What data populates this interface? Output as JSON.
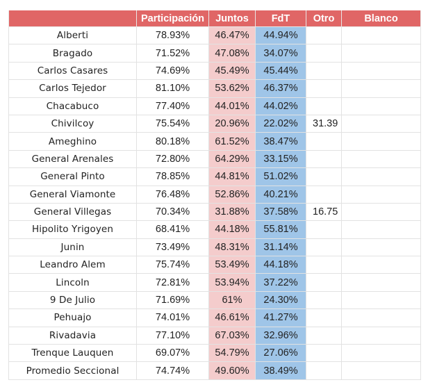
{
  "headers": {
    "name": "",
    "participacion": "Participación",
    "juntos": "Juntos",
    "fdt": "FdT",
    "otro": "Otro",
    "blanco": "Blanco"
  },
  "colors": {
    "header": "#e06666",
    "juntos": "#f4cccc",
    "fdt": "#9fc5e8"
  },
  "rows": [
    {
      "name": "Alberti",
      "participacion": "78.93%",
      "juntos": "46.47%",
      "fdt": "44.94%",
      "otro": "",
      "blanco": ""
    },
    {
      "name": "Bragado",
      "participacion": "71.52%",
      "juntos": "47.08%",
      "fdt": "34.07%",
      "otro": "",
      "blanco": ""
    },
    {
      "name": "Carlos Casares",
      "participacion": "74.69%",
      "juntos": "45.49%",
      "fdt": "45.44%",
      "otro": "",
      "blanco": ""
    },
    {
      "name": "Carlos Tejedor",
      "participacion": "81.10%",
      "juntos": "53.62%",
      "fdt": "46.37%",
      "otro": "",
      "blanco": ""
    },
    {
      "name": "Chacabuco",
      "participacion": "77.40%",
      "juntos": "44.01%",
      "fdt": "44.02%",
      "otro": "",
      "blanco": ""
    },
    {
      "name": "Chivilcoy",
      "participacion": "75.54%",
      "juntos": "20.96%",
      "fdt": "22.02%",
      "otro": "31.39",
      "blanco": ""
    },
    {
      "name": "Ameghino",
      "participacion": "80.18%",
      "juntos": "61.52%",
      "fdt": "38.47%",
      "otro": "",
      "blanco": ""
    },
    {
      "name": "General Arenales",
      "participacion": "72.80%",
      "juntos": "64.29%",
      "fdt": "33.15%",
      "otro": "",
      "blanco": ""
    },
    {
      "name": "General Pinto",
      "participacion": "78.85%",
      "juntos": "44.81%",
      "fdt": "51.02%",
      "otro": "",
      "blanco": ""
    },
    {
      "name": "General Viamonte",
      "participacion": "76.48%",
      "juntos": "52.86%",
      "fdt": "40.21%",
      "otro": "",
      "blanco": ""
    },
    {
      "name": "General Villegas",
      "participacion": "70.34%",
      "juntos": "31.88%",
      "fdt": "37.58%",
      "otro": "16.75",
      "blanco": ""
    },
    {
      "name": "Hipolito Yrigoyen",
      "participacion": "68.41%",
      "juntos": "44.18%",
      "fdt": "55.81%",
      "otro": "",
      "blanco": ""
    },
    {
      "name": "Junin",
      "participacion": "73.49%",
      "juntos": "48.31%",
      "fdt": "31.14%",
      "otro": "",
      "blanco": ""
    },
    {
      "name": "Leandro Alem",
      "participacion": "75.74%",
      "juntos": "53.49%",
      "fdt": "44.18%",
      "otro": "",
      "blanco": ""
    },
    {
      "name": "Lincoln",
      "participacion": "72.81%",
      "juntos": "53.94%",
      "fdt": "37.22%",
      "otro": "",
      "blanco": ""
    },
    {
      "name": "9 De Julio",
      "participacion": "71.69%",
      "juntos": "61%",
      "fdt": "24.30%",
      "otro": "",
      "blanco": ""
    },
    {
      "name": "Pehuajo",
      "participacion": "74.01%",
      "juntos": "46.61%",
      "fdt": "41.27%",
      "otro": "",
      "blanco": ""
    },
    {
      "name": "Rivadavia",
      "participacion": "77.10%",
      "juntos": "67.03%",
      "fdt": "32.96%",
      "otro": "",
      "blanco": ""
    },
    {
      "name": "Trenque Lauquen",
      "participacion": "69.07%",
      "juntos": "54.79%",
      "fdt": "27.06%",
      "otro": "",
      "blanco": ""
    },
    {
      "name": "Promedio Seccional",
      "participacion": "74.74%",
      "juntos": "49.60%",
      "fdt": "38.49%",
      "otro": "",
      "blanco": ""
    }
  ]
}
